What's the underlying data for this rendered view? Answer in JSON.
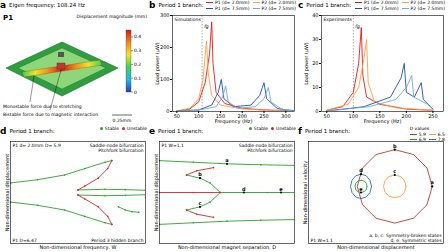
{
  "diagram_a": {
    "panel_label": "a",
    "title": "Eigen frequency: 108.24 Hz",
    "mode": "P1",
    "colorbar": {
      "label": "Displacement magnitude (mm)",
      "lim": [
        0,
        0.45
      ],
      "ticks": [
        0,
        0.1,
        0.2,
        0.3,
        0.4
      ]
    },
    "annotations": [
      "Monostable force due to stretching",
      "Bistable force due to magnetic interaction"
    ],
    "scale_bar": "0.25mm"
  },
  "chart_data": [
    {
      "panel_label": "b",
      "type": "line",
      "title": "Period 1 branch:",
      "annotations": [
        "Simulations"
      ],
      "reference_line": {
        "label": "fg",
        "x": 108
      },
      "xlabel": "Frequency (Hz)",
      "ylabel": "Load power (μW)",
      "xlim": [
        40,
        320
      ],
      "xticks": [
        50,
        100,
        150,
        200,
        250,
        300
      ],
      "ylim": [
        0,
        300
      ],
      "yticks": [
        0,
        100,
        200,
        300
      ],
      "legend": "top-right",
      "series": [
        {
          "name": "P1 (d= 2.0mm)",
          "color": "#e41a1c",
          "values": [
            [
              50,
              1
            ],
            [
              80,
              8
            ],
            [
              100,
              30
            ],
            [
              115,
              90
            ],
            [
              125,
              180
            ],
            [
              130,
              280
            ],
            [
              133,
              150
            ],
            [
              140,
              60
            ],
            [
              160,
              25
            ],
            [
              200,
              10
            ],
            [
              250,
              5
            ],
            [
              300,
              3
            ],
            [
              320,
              2
            ]
          ]
        },
        {
          "name": "P2 (d= 2.0mm)",
          "color": "#ff9f40",
          "values": [
            [
              50,
              2
            ],
            [
              80,
              10
            ],
            [
              100,
              40
            ],
            [
              110,
              100
            ],
            [
              118,
              220
            ],
            [
              122,
              120
            ],
            [
              130,
              50
            ],
            [
              150,
              20
            ],
            [
              200,
              8
            ],
            [
              250,
              4
            ],
            [
              300,
              2
            ],
            [
              320,
              2
            ]
          ]
        },
        {
          "name": "P1 (d= 7.5mm)",
          "color": "#1f4eb4",
          "values": [
            [
              50,
              1
            ],
            [
              100,
              5
            ],
            [
              130,
              20
            ],
            [
              145,
              60
            ],
            [
              152,
              100
            ],
            [
              158,
              40
            ],
            [
              180,
              15
            ],
            [
              220,
              20
            ],
            [
              240,
              50
            ],
            [
              250,
              90
            ],
            [
              256,
              40
            ],
            [
              280,
              10
            ],
            [
              300,
              5
            ],
            [
              320,
              3
            ]
          ]
        },
        {
          "name": "P2 (d= 7.5mm)",
          "color": "#6fa8dc",
          "values": [
            [
              50,
              1
            ],
            [
              100,
              4
            ],
            [
              140,
              15
            ],
            [
              155,
              45
            ],
            [
              162,
              80
            ],
            [
              168,
              30
            ],
            [
              190,
              10
            ],
            [
              230,
              15
            ],
            [
              250,
              40
            ],
            [
              260,
              75
            ],
            [
              266,
              30
            ],
            [
              290,
              8
            ],
            [
              300,
              4
            ],
            [
              320,
              2
            ]
          ]
        }
      ]
    },
    {
      "panel_label": "c",
      "type": "line",
      "title": "Period 1 branch:",
      "annotations": [
        "Experiments"
      ],
      "reference_line": {
        "label": "fg",
        "x": 100
      },
      "xlabel": "Frequency (Hz)",
      "ylabel": "Load power (μW)",
      "xlim": [
        40,
        270
      ],
      "xticks": [
        50,
        100,
        150,
        200,
        250
      ],
      "ylim": [
        0,
        40
      ],
      "yticks": [
        0,
        10,
        20,
        30,
        40
      ],
      "legend": "top-right",
      "series": [
        {
          "name": "P1 (d= 2.0mm)",
          "color": "#e41a1c",
          "values": [
            [
              50,
              0.5
            ],
            [
              80,
              2
            ],
            [
              100,
              8
            ],
            [
              110,
              20
            ],
            [
              115,
              35
            ],
            [
              118,
              15
            ],
            [
              125,
              6
            ],
            [
              150,
              3
            ],
            [
              200,
              1
            ],
            [
              250,
              0.5
            ]
          ]
        },
        {
          "name": "P2 (d= 2.0mm)",
          "color": "#ff9f40",
          "values": [
            [
              50,
              0.5
            ],
            [
              90,
              3
            ],
            [
              110,
              10
            ],
            [
              120,
              22
            ],
            [
              125,
              30
            ],
            [
              128,
              12
            ],
            [
              140,
              4
            ],
            [
              180,
              1.5
            ],
            [
              250,
              0.5
            ]
          ]
        },
        {
          "name": "P1 (d= 7.5mm)",
          "color": "#1f4eb4",
          "values": [
            [
              50,
              0.2
            ],
            [
              120,
              2
            ],
            [
              170,
              6
            ],
            [
              190,
              14
            ],
            [
              196,
              20
            ],
            [
              200,
              8
            ],
            [
              215,
              6
            ],
            [
              228,
              12
            ],
            [
              232,
              5
            ],
            [
              250,
              1
            ]
          ]
        },
        {
          "name": "P2 (d= 7.5mm)",
          "color": "#6fa8dc",
          "values": [
            [
              50,
              0.2
            ],
            [
              130,
              2
            ],
            [
              180,
              5
            ],
            [
              200,
              10
            ],
            [
              210,
              15
            ],
            [
              214,
              6
            ],
            [
              240,
              3
            ],
            [
              250,
              1
            ]
          ]
        }
      ]
    },
    {
      "panel_label": "d",
      "type": "line",
      "title": "Period 1 branch:",
      "annotations": [
        "P1 d= 2.0mm D= 5.9",
        "Saddle-node bifurcation",
        "Pitchfork bifurcation",
        "P1 D=6.47",
        "Period 3 hidden branch"
      ],
      "xlabel": "Non-dimensional frequency, W",
      "ylabel": "Non-dimensional displacement",
      "xlim": [
        0.6,
        1.6
      ],
      "ylim": [
        -1.6,
        1.6
      ],
      "tick_labels": false,
      "legend": "top-right",
      "series": [
        {
          "name": "Stable",
          "color": "#2ca02c",
          "marker": "circle",
          "values": [
            [
              0.6,
              0.3
            ],
            [
              0.8,
              0.4
            ],
            [
              1.0,
              0.55
            ],
            [
              1.15,
              0.75
            ],
            [
              1.3,
              0.95
            ],
            [
              1.35,
              1.0
            ],
            null,
            [
              0.6,
              -0.3
            ],
            [
              0.8,
              -0.4
            ],
            [
              1.0,
              -0.55
            ],
            [
              1.15,
              -0.75
            ],
            [
              1.3,
              -0.95
            ],
            [
              1.35,
              -1.0
            ],
            null,
            [
              1.1,
              0.08
            ],
            [
              1.3,
              0.1
            ],
            [
              1.45,
              0.09
            ],
            [
              1.6,
              0.07
            ],
            null,
            [
              1.1,
              -0.08
            ],
            [
              1.3,
              -0.1
            ],
            [
              1.45,
              -0.09
            ],
            [
              1.6,
              -0.07
            ],
            null,
            [
              1.4,
              -0.45
            ],
            [
              1.45,
              -0.55
            ],
            [
              1.5,
              -0.6
            ],
            [
              1.55,
              -0.62
            ]
          ]
        },
        {
          "name": "Unstable",
          "color": "#d62728",
          "marker": "circle",
          "values": [
            [
              1.35,
              1.0
            ],
            [
              1.32,
              0.75
            ],
            [
              1.25,
              0.45
            ],
            [
              1.15,
              0.2
            ],
            [
              1.1,
              0.08
            ],
            null,
            [
              1.35,
              -1.0
            ],
            [
              1.32,
              -0.75
            ],
            [
              1.25,
              -0.45
            ],
            [
              1.15,
              -0.2
            ],
            [
              1.1,
              -0.08
            ]
          ]
        }
      ]
    },
    {
      "panel_label": "e",
      "type": "line",
      "title": "Period 1 branch:",
      "annotations": [
        "P1 W=1.1",
        "Saddle-node bifurcation",
        "Pitchfork bifurcation"
      ],
      "xlabel": "Non-dimensional magnet separation, D",
      "ylabel": "Non-dimensional displacement",
      "xlim": [
        5,
        9
      ],
      "ylim": [
        -1.6,
        1.6
      ],
      "tick_labels": false,
      "legend": "top-right",
      "series": [
        {
          "name": "Stable",
          "color": "#2ca02c",
          "marker": "circle",
          "values": [
            [
              5,
              1.0
            ],
            [
              6,
              0.95
            ],
            [
              7,
              0.9
            ],
            [
              8,
              0.87
            ],
            [
              9,
              0.85
            ],
            null,
            [
              5,
              -1.0
            ],
            [
              6,
              -0.95
            ],
            [
              7,
              -0.9
            ],
            [
              8,
              -0.87
            ],
            [
              9,
              -0.85
            ],
            null,
            [
              5.8,
              0.55
            ],
            [
              6.2,
              0.45
            ],
            [
              6.5,
              0.3
            ],
            [
              6.8,
              0
            ],
            [
              7.5,
              0
            ],
            [
              8.2,
              0
            ],
            [
              9,
              0
            ],
            null,
            [
              5.8,
              -0.55
            ],
            [
              6.2,
              -0.45
            ],
            [
              6.5,
              -0.3
            ],
            [
              6.8,
              0
            ]
          ]
        },
        {
          "name": "Unstable",
          "color": "#d62728",
          "marker": "circle",
          "values": [
            [
              5,
              0
            ],
            [
              6,
              0
            ],
            [
              6.8,
              0
            ],
            null,
            [
              5.8,
              0.55
            ],
            [
              6.1,
              0.68
            ],
            [
              6.6,
              0.78
            ],
            null,
            [
              5.8,
              -0.55
            ],
            [
              6.1,
              -0.68
            ],
            [
              6.6,
              -0.78
            ]
          ]
        }
      ],
      "points": [
        {
          "label": "a",
          "x": 7,
          "y": 0.9
        },
        {
          "label": "b",
          "x": 6.2,
          "y": 0.45
        },
        {
          "label": "c",
          "x": 6.2,
          "y": -0.45
        },
        {
          "label": "d",
          "x": 7.5,
          "y": 0
        },
        {
          "label": "e",
          "x": 8.6,
          "y": 0
        }
      ]
    },
    {
      "panel_label": "f",
      "type": "line",
      "title": "Period 1 branch:",
      "legend_title": "D values:",
      "annotations": [
        "P1 W=1.1",
        "a, b, c: Symmetry-broken states",
        "d, e: Symmetric states"
      ],
      "xlabel": "Non-dimensional displacement",
      "ylabel": "Non-dimensional velocity",
      "xlim": [
        -0.7,
        1.1
      ],
      "ylim": [
        -1.4,
        1.1
      ],
      "tick_labels": false,
      "legend": "top-right",
      "series": [
        {
          "name": "5.9",
          "color": "#c0392b",
          "values": [
            [
              0.95,
              0
            ],
            [
              0.88,
              0.45
            ],
            [
              0.7,
              0.78
            ],
            [
              0.45,
              0.9
            ],
            [
              0.2,
              0.78
            ],
            [
              0.02,
              0.45
            ],
            [
              -0.05,
              0
            ],
            [
              0.02,
              -0.45
            ],
            [
              0.2,
              -0.78
            ],
            [
              0.45,
              -0.9
            ],
            [
              0.7,
              -0.78
            ],
            [
              0.88,
              -0.45
            ],
            [
              0.95,
              0
            ]
          ]
        },
        {
          "name": "6.5",
          "color": "#ff9f40",
          "values": [
            [
              0.6,
              0
            ],
            [
              0.58,
              0.14
            ],
            [
              0.53,
              0.24
            ],
            [
              0.45,
              0.28
            ],
            [
              0.37,
              0.24
            ],
            [
              0.32,
              0.14
            ],
            [
              0.3,
              0
            ],
            [
              0.32,
              -0.14
            ],
            [
              0.37,
              -0.24
            ],
            [
              0.45,
              -0.28
            ],
            [
              0.53,
              -0.24
            ],
            [
              0.58,
              -0.14
            ],
            [
              0.6,
              0
            ]
          ]
        },
        {
          "name": "6.9",
          "color": "#2ca02c",
          "values": [
            [
              0.08,
              0
            ],
            [
              0.07,
              0.08
            ],
            [
              0.04,
              0.13
            ],
            [
              0,
              0.15
            ],
            [
              -0.04,
              0.13
            ],
            [
              -0.07,
              0.08
            ],
            [
              -0.08,
              0
            ],
            [
              -0.07,
              -0.08
            ],
            [
              -0.04,
              -0.13
            ],
            [
              0,
              -0.15
            ],
            [
              0.04,
              -0.13
            ],
            [
              0.07,
              -0.08
            ],
            [
              0.08,
              0
            ]
          ]
        },
        {
          "name": "7.8",
          "color": "#1f77b4",
          "values": [
            [
              0.14,
              0
            ],
            [
              0.12,
              0.15
            ],
            [
              0.07,
              0.26
            ],
            [
              0,
              0.3
            ],
            [
              -0.07,
              0.26
            ],
            [
              -0.12,
              0.15
            ],
            [
              -0.14,
              0
            ],
            [
              -0.12,
              -0.15
            ],
            [
              -0.07,
              -0.26
            ],
            [
              0,
              -0.3
            ],
            [
              0.07,
              -0.26
            ],
            [
              0.12,
              -0.15
            ],
            [
              0.14,
              0
            ]
          ]
        }
      ],
      "points": [
        {
          "label": "a",
          "x": 0.95,
          "y": 0
        },
        {
          "label": "b",
          "x": 0.45,
          "y": 0.9
        },
        {
          "label": "c",
          "x": 0.45,
          "y": 0.28
        },
        {
          "label": "d",
          "x": 0,
          "y": 0.3
        },
        {
          "label": "e",
          "x": 0,
          "y": -0.15
        }
      ]
    }
  ]
}
